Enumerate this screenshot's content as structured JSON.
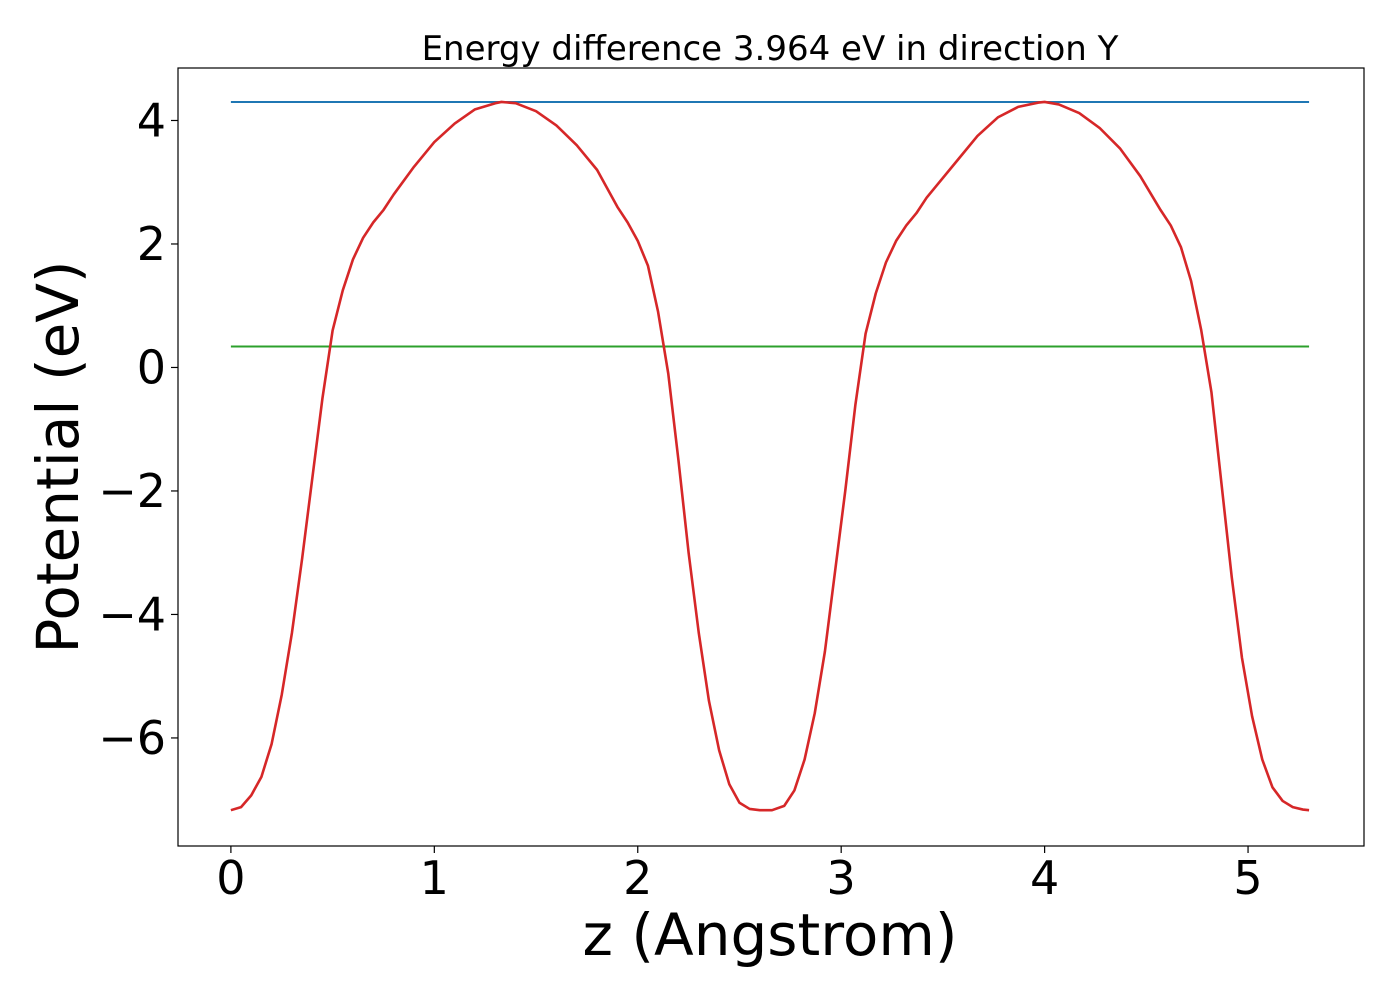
{
  "chart_data": {
    "type": "line",
    "title": "Energy difference 3.964 eV in direction Y",
    "xlabel": "z (Angstrom)",
    "ylabel": "Potential (eV)",
    "xlim": [
      -0.26,
      5.57
    ],
    "ylim": [
      -7.75,
      4.85
    ],
    "xticks": [
      0,
      1,
      2,
      3,
      4,
      5
    ],
    "yticks": [
      -6,
      -4,
      -2,
      0,
      2,
      4
    ],
    "xtick_labels": [
      "0",
      "1",
      "2",
      "3",
      "4",
      "5"
    ],
    "ytick_labels": [
      "−6",
      "−4",
      "−2",
      "0",
      "2",
      "4"
    ],
    "grid": false,
    "legend": "none",
    "series": [
      {
        "color": "#d62728",
        "x": [
          0.0,
          0.05,
          0.1,
          0.15,
          0.2,
          0.25,
          0.3,
          0.35,
          0.4,
          0.45,
          0.5,
          0.55,
          0.6,
          0.65,
          0.7,
          0.75,
          0.8,
          0.9,
          1.0,
          1.1,
          1.2,
          1.3,
          1.33,
          1.4,
          1.5,
          1.6,
          1.7,
          1.8,
          1.9,
          1.95,
          2.0,
          2.05,
          2.1,
          2.15,
          2.2,
          2.25,
          2.3,
          2.35,
          2.4,
          2.45,
          2.5,
          2.55,
          2.6,
          2.66,
          2.72,
          2.77,
          2.82,
          2.87,
          2.92,
          2.97,
          3.02,
          3.07,
          3.12,
          3.17,
          3.22,
          3.27,
          3.32,
          3.37,
          3.42,
          3.47,
          3.57,
          3.67,
          3.77,
          3.87,
          3.97,
          4.0,
          4.07,
          4.17,
          4.27,
          4.37,
          4.47,
          4.57,
          4.62,
          4.67,
          4.72,
          4.77,
          4.82,
          4.87,
          4.92,
          4.97,
          5.02,
          5.07,
          5.12,
          5.17,
          5.22,
          5.27,
          5.3
        ],
        "y": [
          -7.17,
          -7.12,
          -6.93,
          -6.63,
          -6.1,
          -5.3,
          -4.3,
          -3.1,
          -1.8,
          -0.5,
          0.6,
          1.25,
          1.75,
          2.1,
          2.35,
          2.55,
          2.8,
          3.25,
          3.65,
          3.95,
          4.18,
          4.28,
          4.3,
          4.28,
          4.15,
          3.92,
          3.6,
          3.2,
          2.6,
          2.35,
          2.05,
          1.65,
          0.9,
          -0.1,
          -1.5,
          -3.0,
          -4.3,
          -5.4,
          -6.2,
          -6.75,
          -7.05,
          -7.15,
          -7.17,
          -7.17,
          -7.1,
          -6.85,
          -6.35,
          -5.6,
          -4.6,
          -3.3,
          -2.0,
          -0.6,
          0.55,
          1.2,
          1.7,
          2.05,
          2.3,
          2.5,
          2.75,
          2.95,
          3.35,
          3.75,
          4.05,
          4.22,
          4.29,
          4.3,
          4.26,
          4.12,
          3.88,
          3.55,
          3.1,
          2.55,
          2.3,
          1.95,
          1.4,
          0.6,
          -0.4,
          -1.9,
          -3.4,
          -4.7,
          -5.65,
          -6.35,
          -6.8,
          -7.02,
          -7.12,
          -7.16,
          -7.17
        ]
      },
      {
        "color": "#1f77b4",
        "x": [
          0.0,
          5.3
        ],
        "y": [
          4.3,
          4.3
        ]
      },
      {
        "color": "#2ca02c",
        "x": [
          0.0,
          5.3
        ],
        "y": [
          0.34,
          0.34
        ]
      }
    ]
  }
}
